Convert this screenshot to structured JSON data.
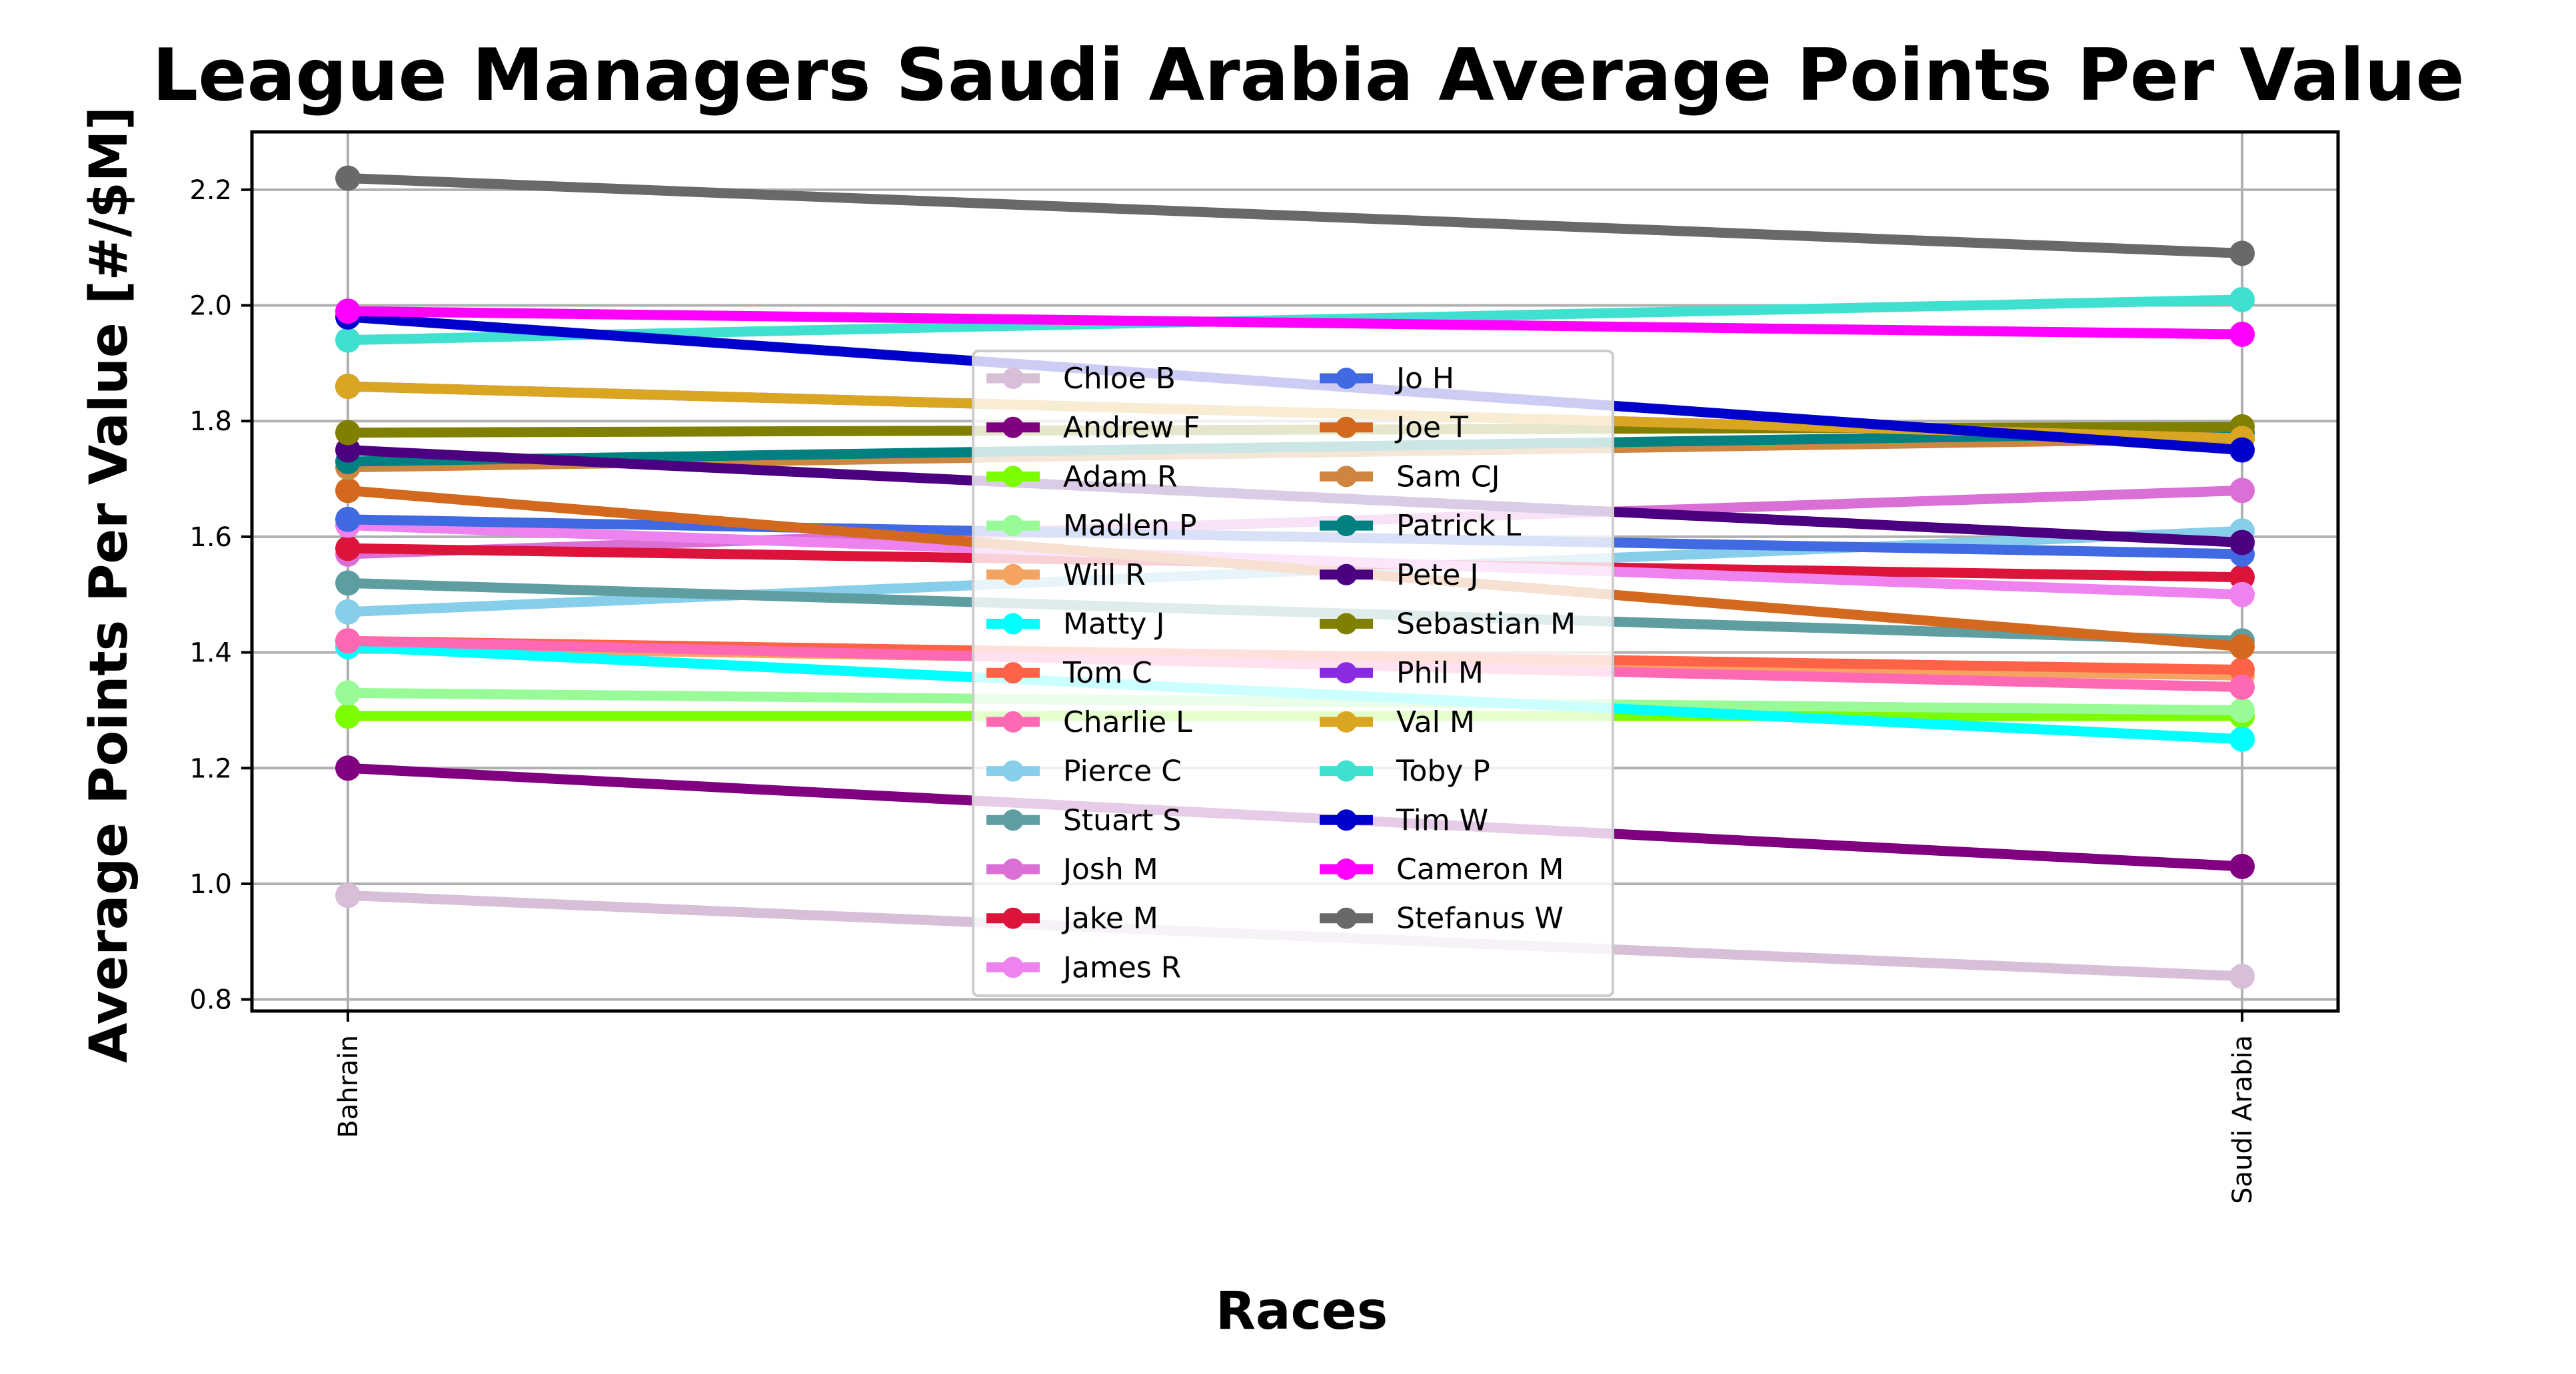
{
  "chart_data": {
    "type": "line",
    "title": "League Managers Saudi Arabia Average Points Per Value",
    "xlabel": "Races",
    "ylabel": "Average Points Per Value [#/$M]",
    "categories": [
      "Bahrain",
      "Saudi Arabia"
    ],
    "ylim": [
      0.78,
      2.3
    ],
    "yticks": [
      0.8,
      1.0,
      1.2,
      1.4,
      1.6,
      1.8,
      2.0,
      2.2
    ],
    "grid": true,
    "legend_position": "center",
    "legend_columns": 2,
    "series": [
      {
        "name": "Chloe B",
        "color": "#d8bfd8",
        "values": [
          0.98,
          0.84
        ]
      },
      {
        "name": "Andrew F",
        "color": "#800080",
        "values": [
          1.2,
          1.03
        ]
      },
      {
        "name": "Adam R",
        "color": "#7cfc00",
        "values": [
          1.29,
          1.29
        ]
      },
      {
        "name": "Madlen P",
        "color": "#98fb98",
        "values": [
          1.33,
          1.3
        ]
      },
      {
        "name": "Will R",
        "color": "#f4a460",
        "values": [
          1.41,
          1.36
        ]
      },
      {
        "name": "Matty J",
        "color": "#00ffff",
        "values": [
          1.41,
          1.25
        ]
      },
      {
        "name": "Tom C",
        "color": "#ff6347",
        "values": [
          1.42,
          1.37
        ]
      },
      {
        "name": "Charlie L",
        "color": "#ff69b4",
        "values": [
          1.42,
          1.34
        ]
      },
      {
        "name": "Pierce C",
        "color": "#87ceeb",
        "values": [
          1.47,
          1.61
        ]
      },
      {
        "name": "Stuart S",
        "color": "#5f9ea0",
        "values": [
          1.52,
          1.42
        ]
      },
      {
        "name": "Josh M",
        "color": "#da70d6",
        "values": [
          1.57,
          1.68
        ]
      },
      {
        "name": "Jake M",
        "color": "#dc143c",
        "values": [
          1.58,
          1.53
        ]
      },
      {
        "name": "James R",
        "color": "#ee82ee",
        "values": [
          1.62,
          1.5
        ]
      },
      {
        "name": "Jo H",
        "color": "#4169e1",
        "values": [
          1.63,
          1.57
        ]
      },
      {
        "name": "Joe T",
        "color": "#d2691e",
        "values": [
          1.68,
          1.41
        ]
      },
      {
        "name": "Sam CJ",
        "color": "#cd853f",
        "values": [
          1.72,
          1.77
        ]
      },
      {
        "name": "Patrick L",
        "color": "#008080",
        "values": [
          1.73,
          1.78
        ]
      },
      {
        "name": "Pete J",
        "color": "#4b0082",
        "values": [
          1.75,
          1.59
        ]
      },
      {
        "name": "Sebastian M",
        "color": "#808000",
        "values": [
          1.78,
          1.79
        ]
      },
      {
        "name": "Phil M",
        "color": "#8a2be2",
        "values": [
          1.86,
          1.77
        ]
      },
      {
        "name": "Val M",
        "color": "#daa520",
        "values": [
          1.86,
          1.77
        ]
      },
      {
        "name": "Toby P",
        "color": "#40e0d0",
        "values": [
          1.94,
          2.01
        ]
      },
      {
        "name": "Tim W",
        "color": "#0000cd",
        "values": [
          1.98,
          1.75
        ]
      },
      {
        "name": "Cameron M",
        "color": "#ff00ff",
        "values": [
          1.99,
          1.95
        ]
      },
      {
        "name": "Stefanus W",
        "color": "#696969",
        "values": [
          2.22,
          2.09
        ]
      }
    ]
  }
}
